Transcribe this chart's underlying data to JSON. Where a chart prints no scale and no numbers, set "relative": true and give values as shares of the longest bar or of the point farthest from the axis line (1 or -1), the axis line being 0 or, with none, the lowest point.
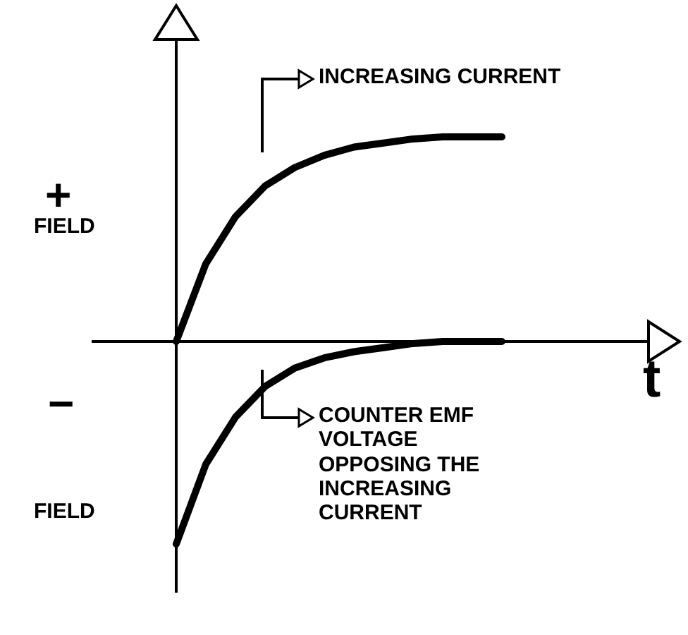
{
  "chart_data": {
    "type": "line",
    "relative": true,
    "xlabel": "t",
    "categories": [
      null,
      null,
      null,
      null,
      null,
      null,
      null,
      null,
      null,
      null,
      null,
      null
    ],
    "series": [
      {
        "color": "#000000",
        "values": [
          0,
          0.38,
          0.61,
          0.76,
          0.85,
          0.91,
          0.95,
          0.97,
          0.99,
          1,
          1,
          1
        ]
      },
      {
        "color": "#000000",
        "values": [
          -0.99,
          -0.6,
          -0.37,
          -0.22,
          -0.13,
          -0.08,
          -0.05,
          -0.03,
          -0.01,
          0,
          0,
          0
        ]
      }
    ],
    "annotations": [
      "+",
      "FIELD",
      "−",
      "FIELD",
      "INCREASING CURRENT",
      "COUNTER EMF\nVOLTAGE\nOPPOSING THE\nINCREASING\nCURRENT"
    ],
    "marker": "none",
    "line_style": "solid"
  }
}
